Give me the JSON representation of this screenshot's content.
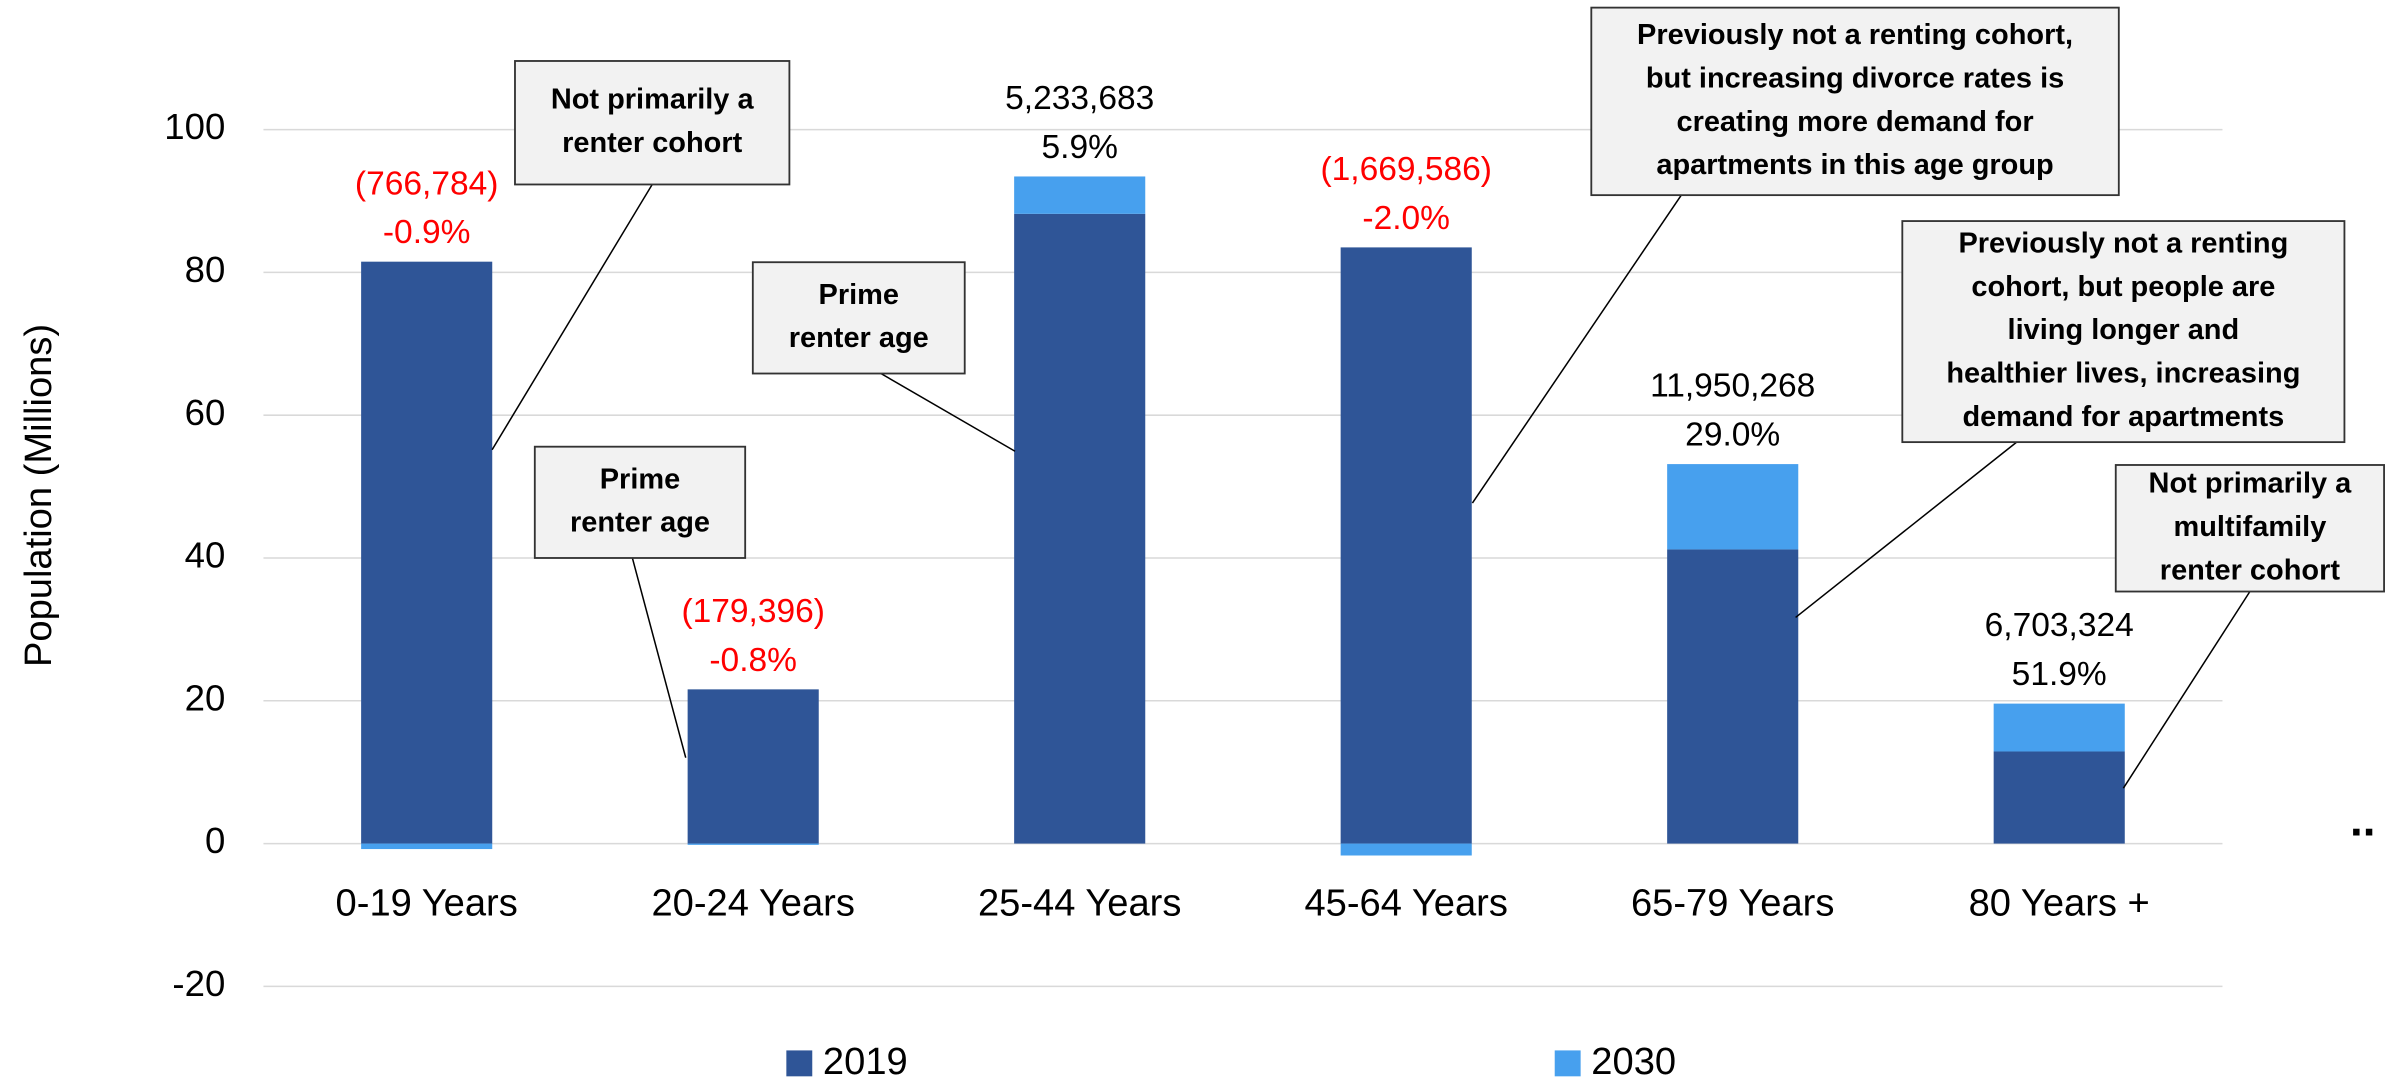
{
  "chart_data": {
    "type": "stacked_bar",
    "y_axis_label": "Population (Millions)",
    "categories": [
      "0-19 Years",
      "20-24 Years",
      "25-44 Years",
      "45-64 Years",
      "65-79 Years",
      "80 Years +"
    ],
    "series": [
      {
        "name": "2019",
        "color": "#2f5597",
        "values": [
          81.5,
          21.6,
          88.2,
          83.5,
          41.2,
          12.9
        ]
      },
      {
        "name": "2030",
        "color": "#47a0ee",
        "values": [
          -0.766784,
          -0.179396,
          5.233683,
          -1.669586,
          11.950268,
          6.703324
        ],
        "value_labels": [
          "(766,784)",
          "(179,396)",
          "5,233,683",
          "(1,669,586)",
          "11,950,268",
          "6,703,324"
        ],
        "pct_labels": [
          "-0.9%",
          "-0.8%",
          "5.9%",
          "-2.0%",
          "29.0%",
          "51.9%"
        ]
      }
    ],
    "ylim": [
      -20,
      100
    ],
    "yticks": [
      -20,
      0,
      20,
      40,
      60,
      80,
      100
    ],
    "grid": true,
    "legend": "bottom",
    "negative_label_color": "#ff0000",
    "callouts": [
      {
        "category": 0,
        "lines": [
          "Not primarily a",
          "renter cohort"
        ]
      },
      {
        "category": 1,
        "lines": [
          "Prime",
          "renter age"
        ]
      },
      {
        "category": 2,
        "lines": [
          "Prime",
          "renter age"
        ]
      },
      {
        "category": 3,
        "lines": [
          "Previously not a renting cohort,",
          "but increasing divorce rates is",
          "creating more demand for",
          "apartments in this age group"
        ]
      },
      {
        "category": 4,
        "lines": [
          "Previously not a renting",
          "cohort, but people are",
          "living longer and",
          "healthier lives, increasing",
          "demand for apartments"
        ]
      },
      {
        "category": 5,
        "lines": [
          "Not primarily a",
          "multifamily",
          "renter cohort"
        ]
      }
    ],
    "trailing_mark": ".."
  }
}
